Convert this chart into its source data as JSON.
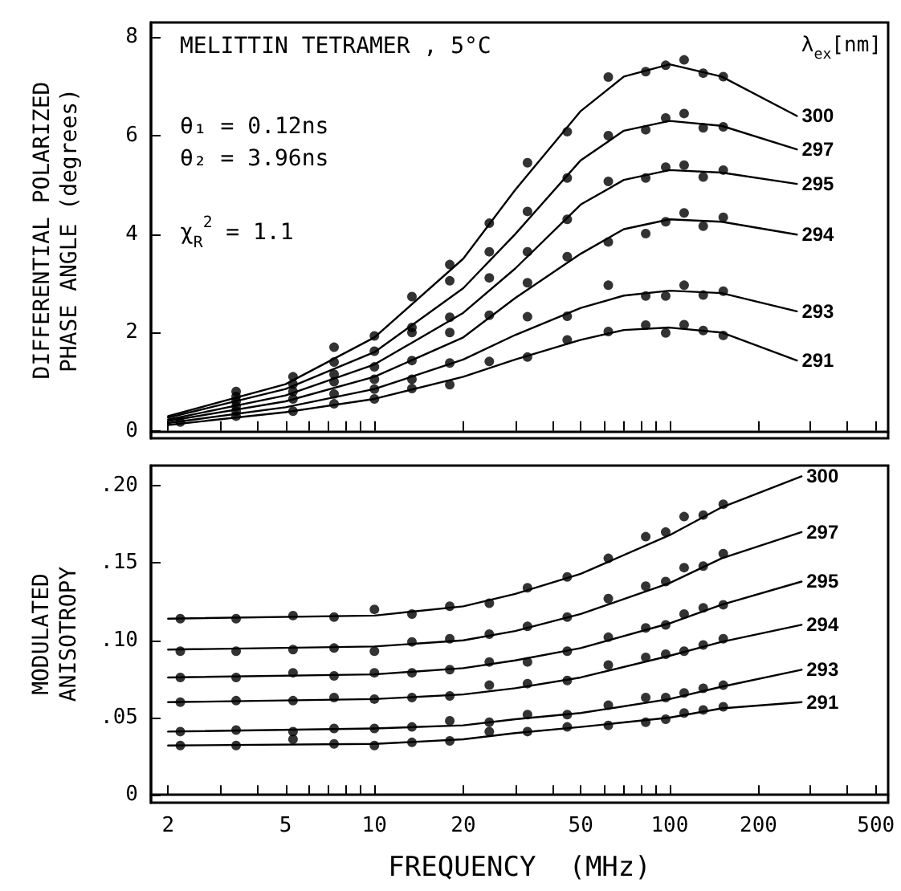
{
  "chart_data": [
    {
      "type": "scatter",
      "ylabel": "DIFFERENTIAL POLARIZED\nPHASE ANGLE (degrees)",
      "legend_title": "λ$_{ex}$[nm]",
      "annotations": [
        "MELITTIN TETRAMER , 5°C",
        "θ₁ = 0.12ns",
        "θ₂ = 3.96ns",
        "χ$_{R}$$^{2}$ = 1.1"
      ],
      "log": "x",
      "marker": "circle",
      "line_style": "solid",
      "tick_labels": "y",
      "xlim": [
        1.75,
        550
      ],
      "ylim": [
        -0.15,
        8.3
      ],
      "xticks": [
        2,
        {
          "value": 3,
          "label": null
        },
        {
          "value": 4,
          "label": null
        },
        5,
        {
          "value": 6,
          "label": null
        },
        {
          "value": 7,
          "label": null
        },
        {
          "value": 8,
          "label": null
        },
        {
          "value": 9,
          "label": null
        },
        10,
        20,
        {
          "value": 30,
          "label": null
        },
        {
          "value": 40,
          "label": null
        },
        50,
        {
          "value": 60,
          "label": null
        },
        {
          "value": 70,
          "label": null
        },
        {
          "value": 80,
          "label": null
        },
        {
          "value": 90,
          "label": null
        },
        100,
        200,
        {
          "value": 300,
          "label": null
        },
        {
          "value": 400,
          "label": null
        },
        500
      ],
      "yticks": [
        0,
        2,
        4,
        6,
        8
      ],
      "x": [
        2.2,
        3.4,
        5.3,
        7.3,
        10,
        13.4,
        18,
        24.5,
        33,
        45,
        62,
        83,
        97,
        112,
        130,
        152
      ],
      "series": [
        {
          "color": "#000000",
          "values": [
            null,
            0.8,
            1.1,
            1.7,
            1.93,
            2.73,
            3.38,
            4.22,
            5.45,
            6.08,
            7.19,
            7.3,
            7.43,
            7.54,
            7.27,
            7.2
          ]
        },
        {
          "color": "#000000",
          "values": [
            null,
            0.7,
            0.95,
            1.4,
            1.62,
            2.1,
            3.05,
            3.64,
            4.46,
            5.14,
            6.0,
            6.12,
            6.36,
            6.45,
            6.16,
            6.18
          ]
        },
        {
          "color": "#000000",
          "values": [
            null,
            0.6,
            0.8,
            1.15,
            1.3,
            2.0,
            2.31,
            3.11,
            3.64,
            4.3,
            5.07,
            5.14,
            5.36,
            5.4,
            5.16,
            5.3
          ]
        },
        {
          "color": "#000000",
          "values": [
            null,
            0.5,
            0.65,
            1.0,
            1.05,
            1.43,
            2.0,
            2.35,
            3.01,
            3.54,
            3.84,
            4.01,
            4.25,
            4.43,
            4.16,
            4.34
          ]
        },
        {
          "color": "#000000",
          "values": [
            null,
            0.4,
            null,
            0.75,
            0.85,
            1.05,
            1.38,
            null,
            2.32,
            2.33,
            2.96,
            2.74,
            2.74,
            2.96,
            2.76,
            2.84
          ]
        },
        {
          "color": "#000000",
          "values": [
            0.18,
            0.3,
            0.4,
            0.55,
            0.65,
            0.86,
            0.94,
            1.41,
            1.5,
            1.85,
            2.02,
            2.15,
            1.99,
            2.16,
            2.04,
            1.94
          ]
        },
        {
          "type": "line",
          "marker": "none",
          "name": "300",
          "color": "#000000",
          "x": [
            2,
            5,
            10,
            20,
            30,
            50,
            70,
            100,
            150,
            270
          ],
          "values": [
            0.3,
            0.95,
            1.9,
            3.5,
            4.9,
            6.5,
            7.2,
            7.45,
            7.2,
            6.4
          ]
        },
        {
          "type": "line",
          "marker": "none",
          "name": "297",
          "color": "#000000",
          "x": [
            2,
            5,
            10,
            20,
            30,
            50,
            70,
            100,
            150,
            270
          ],
          "values": [
            0.27,
            0.85,
            1.6,
            2.9,
            4.0,
            5.5,
            6.1,
            6.3,
            6.2,
            5.72
          ]
        },
        {
          "type": "line",
          "marker": "none",
          "name": "295",
          "color": "#000000",
          "x": [
            2,
            5,
            10,
            20,
            30,
            50,
            70,
            100,
            150,
            270
          ],
          "values": [
            0.23,
            0.72,
            1.35,
            2.4,
            3.3,
            4.6,
            5.1,
            5.3,
            5.25,
            5.02
          ]
        },
        {
          "type": "line",
          "marker": "none",
          "name": "294",
          "color": "#000000",
          "x": [
            2,
            5,
            10,
            20,
            30,
            50,
            70,
            100,
            150,
            270
          ],
          "values": [
            0.2,
            0.6,
            1.1,
            1.9,
            2.7,
            3.6,
            4.1,
            4.3,
            4.25,
            3.99
          ]
        },
        {
          "type": "line",
          "marker": "none",
          "name": "293",
          "color": "#000000",
          "x": [
            2,
            5,
            10,
            20,
            30,
            50,
            70,
            100,
            150,
            270
          ],
          "values": [
            0.16,
            0.48,
            0.85,
            1.45,
            1.95,
            2.5,
            2.75,
            2.85,
            2.8,
            2.43
          ]
        },
        {
          "type": "line",
          "marker": "none",
          "name": "291",
          "color": "#000000",
          "x": [
            2,
            5,
            10,
            20,
            30,
            50,
            70,
            100,
            150,
            270
          ],
          "values": [
            0.12,
            0.38,
            0.65,
            1.1,
            1.45,
            1.85,
            2.05,
            2.1,
            2.0,
            1.43
          ]
        }
      ]
    },
    {
      "type": "scatter",
      "xlabel": "FREQUENCY  (MHz)",
      "ylabel": "MODULATED\nANISOTROPY",
      "log": "x",
      "marker": "circle",
      "line_style": "solid",
      "xlim": [
        1.75,
        550
      ],
      "ylim": [
        -0.005,
        0.213
      ],
      "xticks": [
        2,
        {
          "value": 3,
          "label": null
        },
        {
          "value": 4,
          "label": null
        },
        5,
        {
          "value": 6,
          "label": null
        },
        {
          "value": 7,
          "label": null
        },
        {
          "value": 8,
          "label": null
        },
        {
          "value": 9,
          "label": null
        },
        10,
        20,
        {
          "value": 30,
          "label": null
        },
        {
          "value": 40,
          "label": null
        },
        50,
        {
          "value": 60,
          "label": null
        },
        {
          "value": 70,
          "label": null
        },
        {
          "value": 80,
          "label": null
        },
        {
          "value": 90,
          "label": null
        },
        100,
        200,
        {
          "value": 300,
          "label": null
        },
        {
          "value": 400,
          "label": null
        },
        500
      ],
      "yticks": [
        0,
        {
          "value": 0.05,
          "label": ".05"
        },
        {
          "value": 0.1,
          "label": ".10"
        },
        {
          "value": 0.15,
          "label": ".15"
        },
        {
          "value": 0.2,
          "label": ".20"
        }
      ],
      "x": [
        2.2,
        3.4,
        5.3,
        7.3,
        10,
        13.4,
        18,
        24.5,
        33,
        45,
        62,
        83,
        97,
        112,
        130,
        152
      ],
      "series": [
        {
          "color": "#000000",
          "values": [
            0.114,
            0.114,
            0.116,
            0.115,
            0.12,
            0.117,
            0.122,
            0.124,
            0.134,
            0.141,
            0.153,
            0.167,
            0.17,
            0.18,
            0.181,
            0.188
          ]
        },
        {
          "color": "#000000",
          "values": [
            0.093,
            0.093,
            0.094,
            0.095,
            0.093,
            0.099,
            0.101,
            0.104,
            0.109,
            0.115,
            0.127,
            0.135,
            0.138,
            0.147,
            0.148,
            0.156
          ]
        },
        {
          "color": "#000000",
          "values": [
            0.076,
            0.076,
            0.079,
            0.077,
            0.079,
            0.079,
            0.081,
            0.086,
            0.086,
            0.093,
            0.102,
            0.108,
            0.11,
            0.117,
            0.121,
            0.123
          ]
        },
        {
          "color": "#000000",
          "values": [
            0.06,
            0.061,
            0.061,
            0.063,
            0.062,
            0.063,
            0.064,
            0.071,
            0.072,
            0.074,
            0.084,
            0.089,
            0.091,
            0.093,
            0.097,
            0.101
          ]
        },
        {
          "color": "#000000",
          "values": [
            0.041,
            0.042,
            0.041,
            0.043,
            0.043,
            0.044,
            0.048,
            0.047,
            0.052,
            0.052,
            0.058,
            0.063,
            0.063,
            0.066,
            0.069,
            0.071
          ]
        },
        {
          "color": "#000000",
          "values": [
            0.032,
            0.032,
            0.036,
            0.033,
            0.032,
            0.034,
            0.035,
            0.041,
            0.041,
            0.044,
            0.045,
            0.047,
            0.049,
            0.053,
            0.055,
            0.057
          ]
        },
        {
          "type": "line",
          "marker": "none",
          "name": "300",
          "color": "#000000",
          "x": [
            2,
            10,
            20,
            30,
            50,
            100,
            150,
            280
          ],
          "values": [
            0.114,
            0.116,
            0.122,
            0.13,
            0.143,
            0.168,
            0.186,
            0.206
          ]
        },
        {
          "type": "line",
          "marker": "none",
          "name": "297",
          "color": "#000000",
          "x": [
            2,
            10,
            20,
            30,
            50,
            100,
            150,
            280
          ],
          "values": [
            0.094,
            0.096,
            0.1,
            0.106,
            0.117,
            0.137,
            0.153,
            0.17
          ]
        },
        {
          "type": "line",
          "marker": "none",
          "name": "295",
          "color": "#000000",
          "x": [
            2,
            10,
            20,
            30,
            50,
            100,
            150,
            280
          ],
          "values": [
            0.076,
            0.078,
            0.082,
            0.087,
            0.095,
            0.111,
            0.123,
            0.138
          ]
        },
        {
          "type": "line",
          "marker": "none",
          "name": "294",
          "color": "#000000",
          "x": [
            2,
            10,
            20,
            30,
            50,
            100,
            150,
            280
          ],
          "values": [
            0.06,
            0.062,
            0.065,
            0.069,
            0.076,
            0.09,
            0.099,
            0.11
          ]
        },
        {
          "type": "line",
          "marker": "none",
          "name": "293",
          "color": "#000000",
          "x": [
            2,
            10,
            20,
            30,
            50,
            100,
            150,
            280
          ],
          "values": [
            0.041,
            0.043,
            0.045,
            0.049,
            0.053,
            0.062,
            0.07,
            0.081
          ]
        },
        {
          "type": "line",
          "marker": "none",
          "name": "291",
          "color": "#000000",
          "x": [
            2,
            10,
            20,
            30,
            50,
            100,
            150,
            280
          ],
          "values": [
            0.032,
            0.033,
            0.036,
            0.04,
            0.044,
            0.05,
            0.056,
            0.06
          ]
        }
      ]
    }
  ]
}
